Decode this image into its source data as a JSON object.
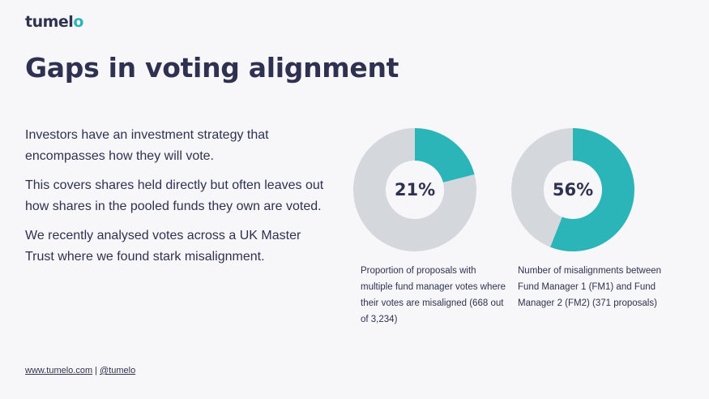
{
  "brand": {
    "logo_text": "tumel",
    "logo_accent": "o"
  },
  "title": "Gaps in voting alignment",
  "paragraphs": [
    "Investors have an investment strategy that encompasses how they will vote.",
    "This covers shares held directly but often leaves out how shares in the pooled funds they own are voted.",
    "We recently analysed votes across a UK Master Trust where we found stark misalignment."
  ],
  "colors": {
    "accent": "#2cb5b8",
    "track": "#d4d8dd",
    "text": "#2f3151"
  },
  "chart_data": [
    {
      "type": "pie",
      "values": [
        21,
        79
      ],
      "center_label": "21%",
      "caption": "Proportion of proposals with multiple fund manager votes where their votes are misaligned (668 out of 3,234)"
    },
    {
      "type": "pie",
      "values": [
        56,
        44
      ],
      "center_label": "56%",
      "caption": "Number of misalignments between Fund Manager 1 (FM1) and Fund Manager 2 (FM2) (371 proposals)"
    }
  ],
  "footer": {
    "website": "www.tumelo.com",
    "separator": "|",
    "handle": "@tumelo"
  }
}
